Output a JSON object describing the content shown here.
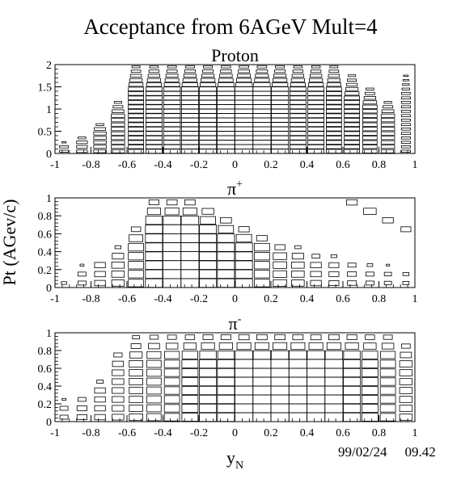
{
  "title": "Acceptance from 6AGeV Mult=4",
  "timestamp": {
    "date": "99/02/24",
    "time": "09.42"
  },
  "ylabel": "Pt (AGev/c)",
  "chart_data": [
    {
      "type": "box-histogram-2d",
      "title": "Proton",
      "xlabel": "",
      "xlim": [
        -1,
        1
      ],
      "ylim": [
        0,
        2
      ],
      "x_ticks": [
        -1,
        -0.8,
        -0.6,
        -0.4,
        -0.2,
        0,
        0.2,
        0.4,
        0.6,
        0.8,
        1
      ],
      "y_ticks": [
        0,
        0.5,
        1,
        1.5,
        2
      ],
      "bin_width": 0.1,
      "columns": [
        {
          "x": -0.95,
          "ymax": 0.25,
          "weight": 0.5
        },
        {
          "x": -0.85,
          "ymax": 0.4,
          "weight": 0.6
        },
        {
          "x": -0.75,
          "ymax": 0.7,
          "weight": 0.7
        },
        {
          "x": -0.65,
          "ymax": 1.2,
          "weight": 0.75
        },
        {
          "x": -0.55,
          "ymax": 2.0,
          "weight": 0.85
        },
        {
          "x": -0.45,
          "ymax": 2.0,
          "weight": 0.9
        },
        {
          "x": -0.35,
          "ymax": 2.0,
          "weight": 0.93
        },
        {
          "x": -0.25,
          "ymax": 2.0,
          "weight": 0.95
        },
        {
          "x": -0.15,
          "ymax": 2.0,
          "weight": 0.95
        },
        {
          "x": -0.05,
          "ymax": 2.0,
          "weight": 0.97
        },
        {
          "x": 0.05,
          "ymax": 2.0,
          "weight": 1.0
        },
        {
          "x": 0.15,
          "ymax": 2.0,
          "weight": 1.0
        },
        {
          "x": 0.25,
          "ymax": 2.0,
          "weight": 0.95
        },
        {
          "x": 0.35,
          "ymax": 2.0,
          "weight": 0.9
        },
        {
          "x": 0.45,
          "ymax": 2.0,
          "weight": 0.9
        },
        {
          "x": 0.55,
          "ymax": 2.0,
          "weight": 0.85
        },
        {
          "x": 0.65,
          "ymax": 1.75,
          "weight": 0.85
        },
        {
          "x": 0.75,
          "ymax": 1.5,
          "weight": 0.8
        },
        {
          "x": 0.85,
          "ymax": 1.2,
          "weight": 0.75
        },
        {
          "x": 0.95,
          "ymax": 1.8,
          "weight": 0.5
        }
      ]
    },
    {
      "type": "box-histogram-2d",
      "title": "π⁺",
      "xlabel": "",
      "xlim": [
        -1,
        1
      ],
      "ylim": [
        0,
        1
      ],
      "x_ticks": [
        -1,
        -0.8,
        -0.6,
        -0.4,
        -0.2,
        0,
        0.2,
        0.4,
        0.6,
        0.8,
        1
      ],
      "y_ticks": [
        0,
        0.2,
        0.4,
        0.6,
        0.8,
        1
      ],
      "bin_width": 0.1,
      "columns": [
        {
          "x": -0.95,
          "ymax": 0.1,
          "weight": 0.3
        },
        {
          "x": -0.85,
          "ymax": 0.25,
          "weight": 0.45
        },
        {
          "x": -0.75,
          "ymax": 0.35,
          "weight": 0.6
        },
        {
          "x": -0.65,
          "ymax": 0.45,
          "weight": 0.7
        },
        {
          "x": -0.55,
          "ymax": 0.7,
          "weight": 0.85
        },
        {
          "x": -0.45,
          "ymax": 1.0,
          "weight": 0.95
        },
        {
          "x": -0.35,
          "ymax": 1.0,
          "weight": 1.0
        },
        {
          "x": -0.25,
          "ymax": 1.0,
          "weight": 1.0
        },
        {
          "x": -0.15,
          "ymax": 0.95,
          "weight": 0.95
        },
        {
          "x": -0.05,
          "ymax": 0.82,
          "weight": 0.95
        },
        {
          "x": 0.05,
          "ymax": 0.7,
          "weight": 0.95
        },
        {
          "x": 0.15,
          "ymax": 0.62,
          "weight": 0.85
        },
        {
          "x": 0.25,
          "ymax": 0.52,
          "weight": 0.75
        },
        {
          "x": 0.35,
          "ymax": 0.45,
          "weight": 0.7
        },
        {
          "x": 0.45,
          "ymax": 0.4,
          "weight": 0.6
        },
        {
          "x": 0.55,
          "ymax": 0.37,
          "weight": 0.55
        },
        {
          "x": 0.65,
          "ymax": 0.32,
          "weight": 0.5
        },
        {
          "x": 0.75,
          "ymax": 0.28,
          "weight": 0.45
        },
        {
          "x": 0.85,
          "ymax": 0.25,
          "weight": 0.4
        },
        {
          "x": 0.95,
          "ymax": 0.2,
          "weight": 0.35
        }
      ],
      "islands": [
        {
          "x": 0.65,
          "y": [
            0.93,
            0.98
          ],
          "weight": 0.6
        },
        {
          "x": 0.75,
          "y": [
            0.8,
            0.92
          ],
          "weight": 0.7
        },
        {
          "x": 0.85,
          "y": [
            0.7,
            0.82
          ],
          "weight": 0.6
        },
        {
          "x": 0.95,
          "y": [
            0.6,
            0.72
          ],
          "weight": 0.55
        }
      ]
    },
    {
      "type": "box-histogram-2d",
      "title": "π⁻",
      "xlabel": "y_N",
      "xlim": [
        -1,
        1
      ],
      "ylim": [
        0,
        1
      ],
      "x_ticks": [
        -1,
        -0.8,
        -0.6,
        -0.4,
        -0.2,
        0,
        0.2,
        0.4,
        0.6,
        0.8,
        1
      ],
      "y_ticks": [
        0,
        0.2,
        0.4,
        0.6,
        0.8,
        1
      ],
      "bin_width": 0.1,
      "columns": [
        {
          "x": -0.95,
          "ymax": 0.25,
          "weight": 0.45
        },
        {
          "x": -0.85,
          "ymax": 0.3,
          "weight": 0.55
        },
        {
          "x": -0.75,
          "ymax": 0.48,
          "weight": 0.6
        },
        {
          "x": -0.65,
          "ymax": 0.85,
          "weight": 0.65
        },
        {
          "x": -0.55,
          "ymax": 0.97,
          "weight": 0.75
        },
        {
          "x": -0.45,
          "ymax": 1.0,
          "weight": 0.8
        },
        {
          "x": -0.35,
          "ymax": 1.0,
          "weight": 0.85
        },
        {
          "x": -0.25,
          "ymax": 1.0,
          "weight": 0.9
        },
        {
          "x": -0.15,
          "ymax": 1.0,
          "weight": 0.95
        },
        {
          "x": -0.05,
          "ymax": 1.0,
          "weight": 0.95
        },
        {
          "x": 0.05,
          "ymax": 1.0,
          "weight": 1.0
        },
        {
          "x": 0.15,
          "ymax": 1.0,
          "weight": 1.0
        },
        {
          "x": 0.25,
          "ymax": 1.0,
          "weight": 1.0
        },
        {
          "x": 0.35,
          "ymax": 1.0,
          "weight": 1.0
        },
        {
          "x": 0.45,
          "ymax": 1.0,
          "weight": 1.0
        },
        {
          "x": 0.55,
          "ymax": 1.0,
          "weight": 1.0
        },
        {
          "x": 0.65,
          "ymax": 1.0,
          "weight": 0.95
        },
        {
          "x": 0.75,
          "ymax": 1.0,
          "weight": 0.9
        },
        {
          "x": 0.85,
          "ymax": 1.0,
          "weight": 0.85
        },
        {
          "x": 0.95,
          "ymax": 0.95,
          "weight": 0.7
        }
      ]
    }
  ]
}
